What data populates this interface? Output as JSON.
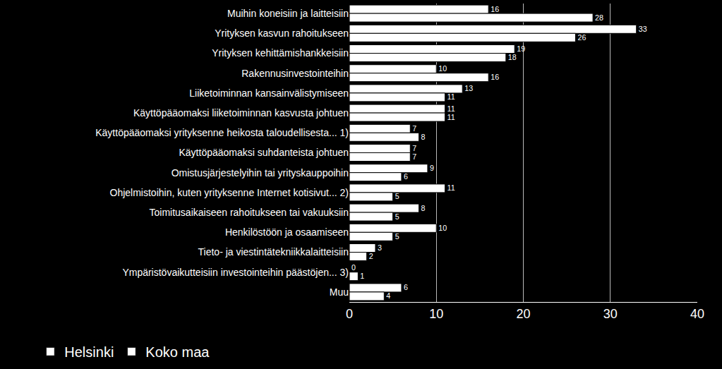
{
  "chart_data": {
    "type": "bar",
    "orientation": "horizontal",
    "categories": [
      "Muihin koneisiin ja laitteisiin",
      "Yrityksen kasvun rahoitukseen",
      "Yrityksen kehittämishankkeisiin",
      "Rakennusinvestointeihin",
      "Liiketoiminnan kansainvälistymiseen",
      "Käyttöpääomaksi liiketoiminnan kasvusta johtuen",
      "Käyttöpääomaksi yrityksenne heikosta taloudellisesta... 1)",
      "Käyttöpääomaksi suhdanteista johtuen",
      "Omistusjärjestelyihin tai yrityskauppoihin",
      "Ohjelmistoihin, kuten yrityksenne Internet kotisivut... 2)",
      "Toimitusaikaiseen rahoitukseen tai vakuuksiin",
      "Henkilöstöön ja osaamiseen",
      "Tieto- ja viestintätekniikkalaitteisiin",
      "Ympäristövaikutteisiin investointeihin päästöjen... 3)",
      "Muu"
    ],
    "series": [
      {
        "name": "Helsinki",
        "color": "#ffffff",
        "values": [
          16,
          33,
          19,
          10,
          13,
          11,
          7,
          7,
          9,
          11,
          8,
          10,
          3,
          0,
          6
        ]
      },
      {
        "name": "Koko maa",
        "color": "#ffffff",
        "values": [
          28,
          26,
          18,
          16,
          11,
          11,
          8,
          7,
          6,
          5,
          5,
          5,
          2,
          1,
          4
        ]
      }
    ],
    "xlim": [
      0,
      40
    ],
    "xticks": [
      0,
      10,
      20,
      30,
      40
    ],
    "grid": true,
    "data_labels": true,
    "legend": "bottom"
  }
}
